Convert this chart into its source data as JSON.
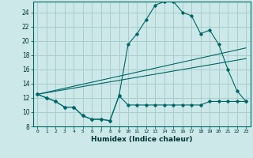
{
  "xlabel": "Humidex (Indice chaleur)",
  "ylabel": "",
  "bg_color": "#cce8e8",
  "line_color": "#006666",
  "grid_color": "#aacccc",
  "xlim": [
    -0.5,
    23.5
  ],
  "ylim": [
    8,
    25.5
  ],
  "xticks": [
    0,
    1,
    2,
    3,
    4,
    5,
    6,
    7,
    8,
    9,
    10,
    11,
    12,
    13,
    14,
    15,
    16,
    17,
    18,
    19,
    20,
    21,
    22,
    23
  ],
  "yticks": [
    8,
    10,
    12,
    14,
    16,
    18,
    20,
    22,
    24
  ],
  "series1_x": [
    0,
    1,
    2,
    3,
    4,
    5,
    6,
    7,
    8,
    9,
    10,
    11,
    12,
    13,
    14,
    15,
    16,
    17,
    18,
    19,
    20,
    21,
    22,
    23
  ],
  "series1_y": [
    12.5,
    12.0,
    11.5,
    10.7,
    10.7,
    9.5,
    9.0,
    9.0,
    8.8,
    12.3,
    11.0,
    11.0,
    11.0,
    11.0,
    11.0,
    11.0,
    11.0,
    11.0,
    11.0,
    11.5,
    11.5,
    11.5,
    11.5,
    11.5
  ],
  "series2_x": [
    0,
    1,
    2,
    3,
    4,
    5,
    6,
    7,
    8,
    9,
    10,
    11,
    12,
    13,
    14,
    15,
    16,
    17,
    18,
    19,
    20,
    21,
    22,
    23
  ],
  "series2_y": [
    12.5,
    12.0,
    11.5,
    10.7,
    10.7,
    9.5,
    9.0,
    9.0,
    8.8,
    12.3,
    19.5,
    21.0,
    23.0,
    25.0,
    25.5,
    25.5,
    24.0,
    23.5,
    21.0,
    21.5,
    19.5,
    16.0,
    13.0,
    11.5
  ],
  "series3_x": [
    0,
    23
  ],
  "series3_y": [
    12.5,
    19.0
  ],
  "series4_x": [
    0,
    23
  ],
  "series4_y": [
    12.5,
    17.5
  ]
}
